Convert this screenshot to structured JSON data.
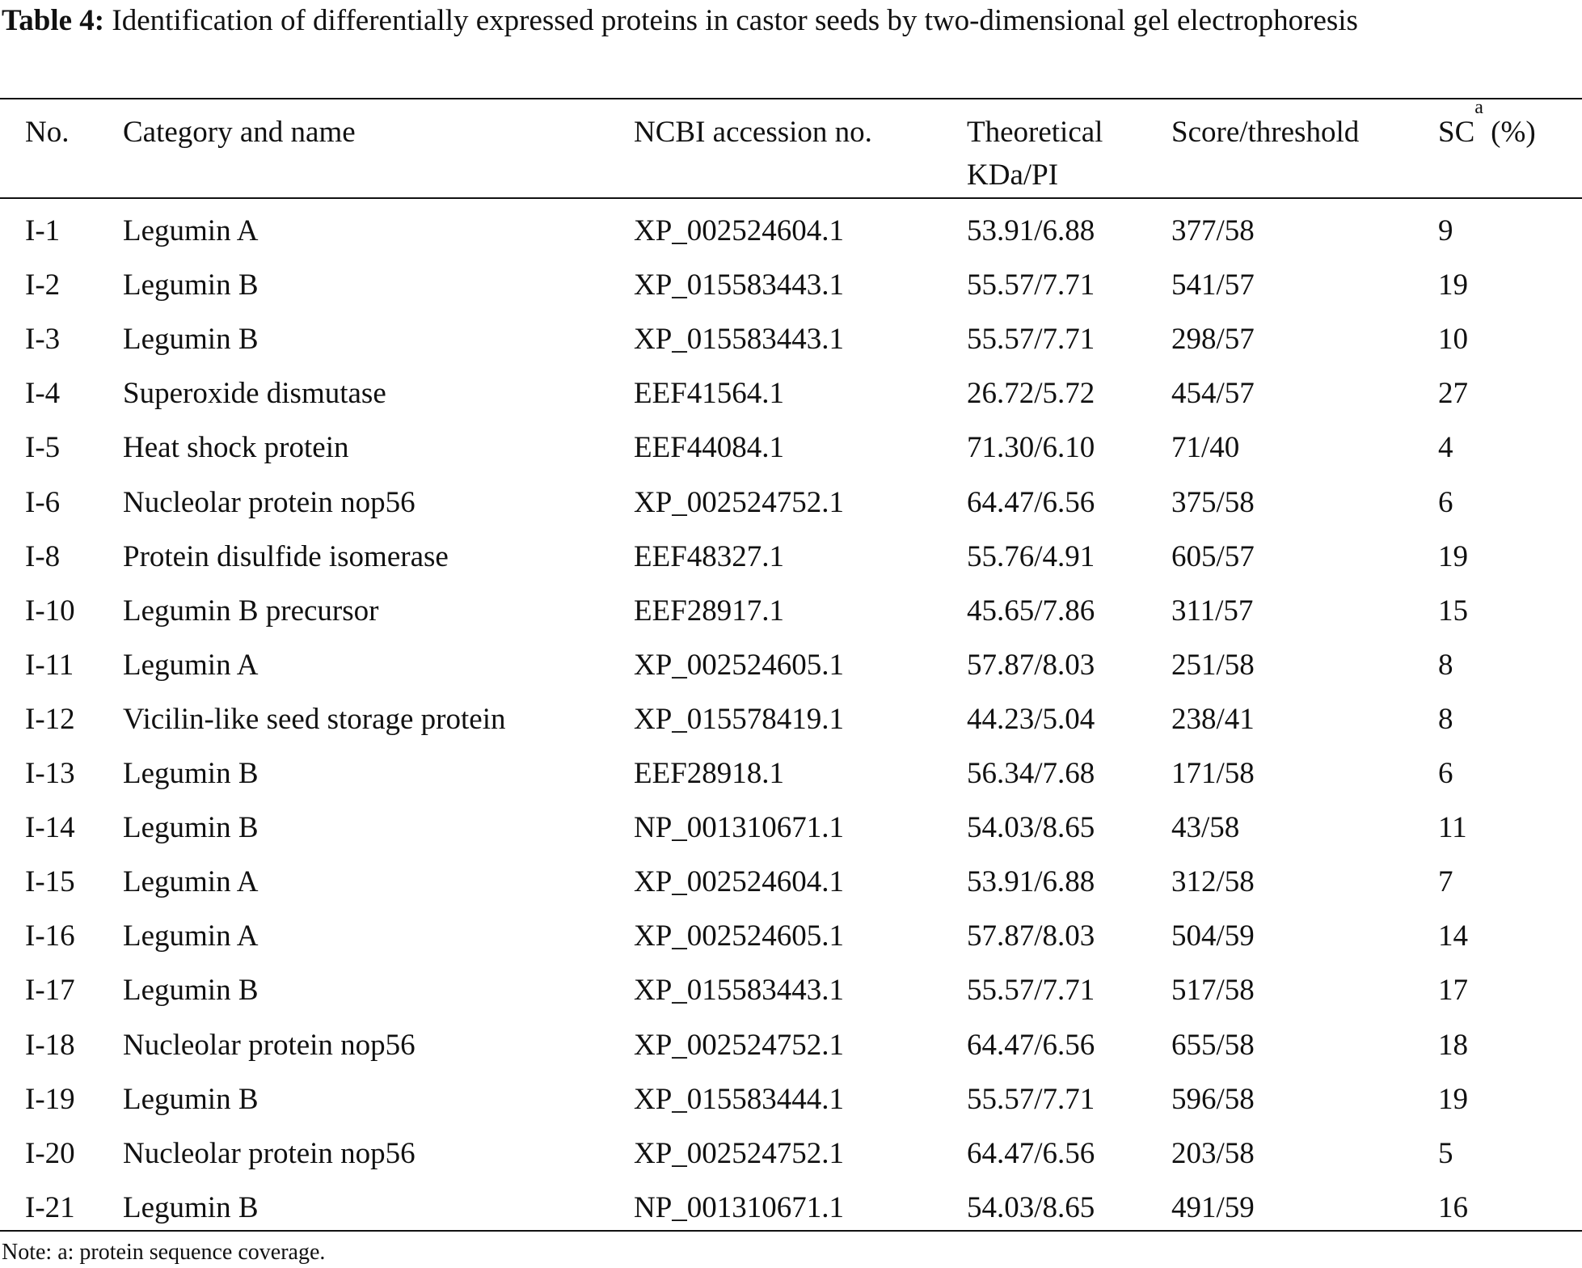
{
  "caption": {
    "label": "Table 4:",
    "text": "Identification of differentially expressed proteins in castor seeds by two-dimensional gel electrophoresis"
  },
  "table": {
    "headers": [
      "No.",
      "Category and name",
      "NCBI accession no.",
      "Theoretical KDa/PI",
      "Score/threshold",
      {
        "text": "SC",
        "sup": "a",
        "suffix": " (%)"
      }
    ],
    "rows": [
      [
        "I-1",
        "Legumin A",
        "XP_002524604.1",
        "53.91/6.88",
        "377/58",
        "9"
      ],
      [
        "I-2",
        "Legumin B",
        "XP_015583443.1",
        "55.57/7.71",
        "541/57",
        "19"
      ],
      [
        "I-3",
        "Legumin B",
        "XP_015583443.1",
        "55.57/7.71",
        "298/57",
        "10"
      ],
      [
        "I-4",
        "Superoxide dismutase",
        "EEF41564.1",
        "26.72/5.72",
        "454/57",
        "27"
      ],
      [
        "I-5",
        "Heat shock protein",
        "EEF44084.1",
        "71.30/6.10",
        "71/40",
        "4"
      ],
      [
        "I-6",
        "Nucleolar protein nop56",
        "XP_002524752.1",
        "64.47/6.56",
        "375/58",
        "6"
      ],
      [
        "I-8",
        "Protein disulfide isomerase",
        "EEF48327.1",
        "55.76/4.91",
        "605/57",
        "19"
      ],
      [
        "I-10",
        "Legumin B precursor",
        "EEF28917.1",
        "45.65/7.86",
        "311/57",
        "15"
      ],
      [
        "I-11",
        "Legumin A",
        "XP_002524605.1",
        "57.87/8.03",
        "251/58",
        "8"
      ],
      [
        "I-12",
        "Vicilin-like seed storage protein",
        "XP_015578419.1",
        "44.23/5.04",
        "238/41",
        "8"
      ],
      [
        "I-13",
        "Legumin B",
        "EEF28918.1",
        "56.34/7.68",
        "171/58",
        "6"
      ],
      [
        "I-14",
        "Legumin B",
        "NP_001310671.1",
        "54.03/8.65",
        "43/58",
        "11"
      ],
      [
        "I-15",
        "Legumin A",
        "XP_002524604.1",
        "53.91/6.88",
        "312/58",
        "7"
      ],
      [
        "I-16",
        "Legumin A",
        "XP_002524605.1",
        "57.87/8.03",
        "504/59",
        "14"
      ],
      [
        "I-17",
        "Legumin B",
        "XP_015583443.1",
        "55.57/7.71",
        "517/58",
        "17"
      ],
      [
        "I-18",
        "Nucleolar protein nop56",
        "XP_002524752.1",
        "64.47/6.56",
        "655/58",
        "18"
      ],
      [
        "I-19",
        "Legumin B",
        "XP_015583444.1",
        "55.57/7.71",
        "596/58",
        "19"
      ],
      [
        "I-20",
        "Nucleolar protein nop56",
        "XP_002524752.1",
        "64.47/6.56",
        "203/58",
        "5"
      ],
      [
        "I-21",
        "Legumin B",
        "NP_001310671.1",
        "54.03/8.65",
        "491/59",
        "16"
      ]
    ]
  },
  "note": "Note: a: protein sequence coverage."
}
